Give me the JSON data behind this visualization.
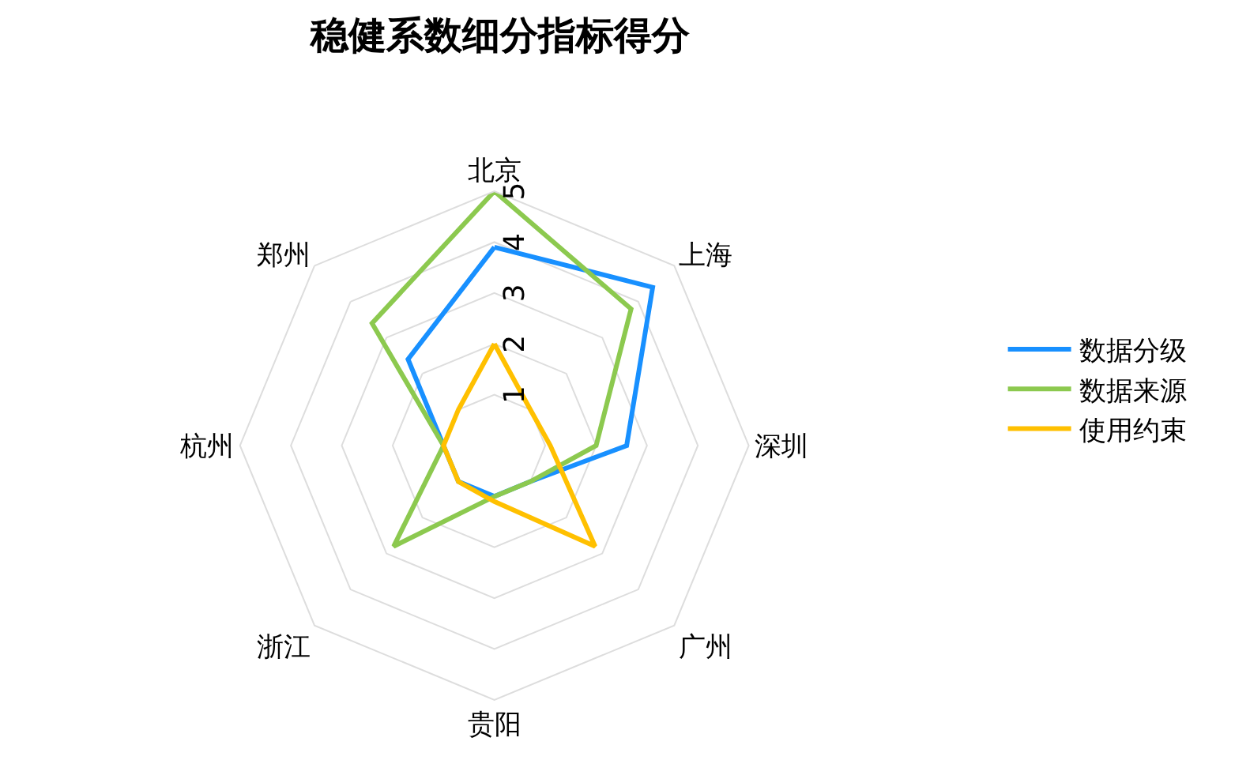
{
  "chart_data": {
    "type": "radar",
    "title": "稳健系数细分指标得分",
    "categories": [
      "北京",
      "上海",
      "深圳",
      "广州",
      "贵阳",
      "浙江",
      "杭州",
      "郑州"
    ],
    "series": [
      {
        "name": "数据分级",
        "color": "#1890ff",
        "values": [
          3.9,
          4.4,
          2.6,
          1.0,
          1.0,
          1.0,
          1.0,
          2.4
        ]
      },
      {
        "name": "数据来源",
        "color": "#8cc94f",
        "values": [
          5,
          3.8,
          2.0,
          1.0,
          1.0,
          2.8,
          1.0,
          3.4
        ]
      },
      {
        "name": "使用约束",
        "color": "#ffc000",
        "values": [
          2.0,
          1.0,
          1.1,
          2.8,
          1.1,
          1.0,
          1.0,
          1.0
        ]
      }
    ],
    "ylim": [
      0,
      5
    ],
    "yticks": [
      1,
      2,
      3,
      4,
      5
    ],
    "grid": true,
    "legend": "right"
  }
}
